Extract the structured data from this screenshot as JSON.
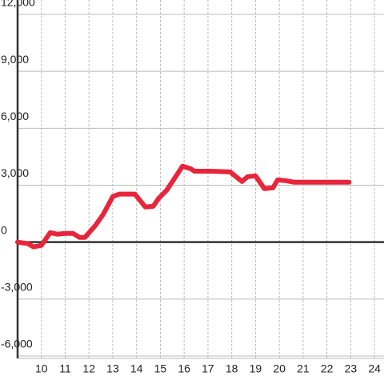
{
  "chart_data": {
    "type": "line",
    "x": [
      9.0,
      9.43,
      9.67,
      10.0,
      10.37,
      10.67,
      11.0,
      11.33,
      11.6,
      11.83,
      12.27,
      12.6,
      13.0,
      13.27,
      13.93,
      14.37,
      14.7,
      14.93,
      15.27,
      15.93,
      16.27,
      16.43,
      17.1,
      17.93,
      18.43,
      18.67,
      19.0,
      19.37,
      19.73,
      19.93,
      20.27,
      20.6,
      22.93
    ],
    "series": [
      {
        "color": "#e8253a",
        "values": [
          0,
          -80,
          -250,
          -170,
          500,
          420,
          460,
          460,
          250,
          250,
          880,
          1470,
          2400,
          2530,
          2530,
          1850,
          1890,
          2310,
          2740,
          4000,
          3870,
          3740,
          3740,
          3700,
          3200,
          3450,
          3490,
          2820,
          2860,
          3280,
          3240,
          3160,
          3160
        ]
      }
    ],
    "xlim": [
      9,
      24.4
    ],
    "xticks": [
      10,
      11,
      12,
      13,
      14,
      15,
      16,
      17,
      18,
      19,
      20,
      21,
      22,
      23,
      24
    ],
    "ylim": [
      -6000,
      12000
    ],
    "yticks": [
      {
        "value": -6000,
        "label": "-6,000"
      },
      {
        "value": -3000,
        "label": "-3,000"
      },
      0,
      {
        "value": 3000,
        "label": "3,000"
      },
      {
        "value": 6000,
        "label": "6,000"
      },
      {
        "value": 9000,
        "label": "9,000"
      },
      {
        "value": 12000,
        "label": "12,000"
      }
    ],
    "grid": true
  }
}
